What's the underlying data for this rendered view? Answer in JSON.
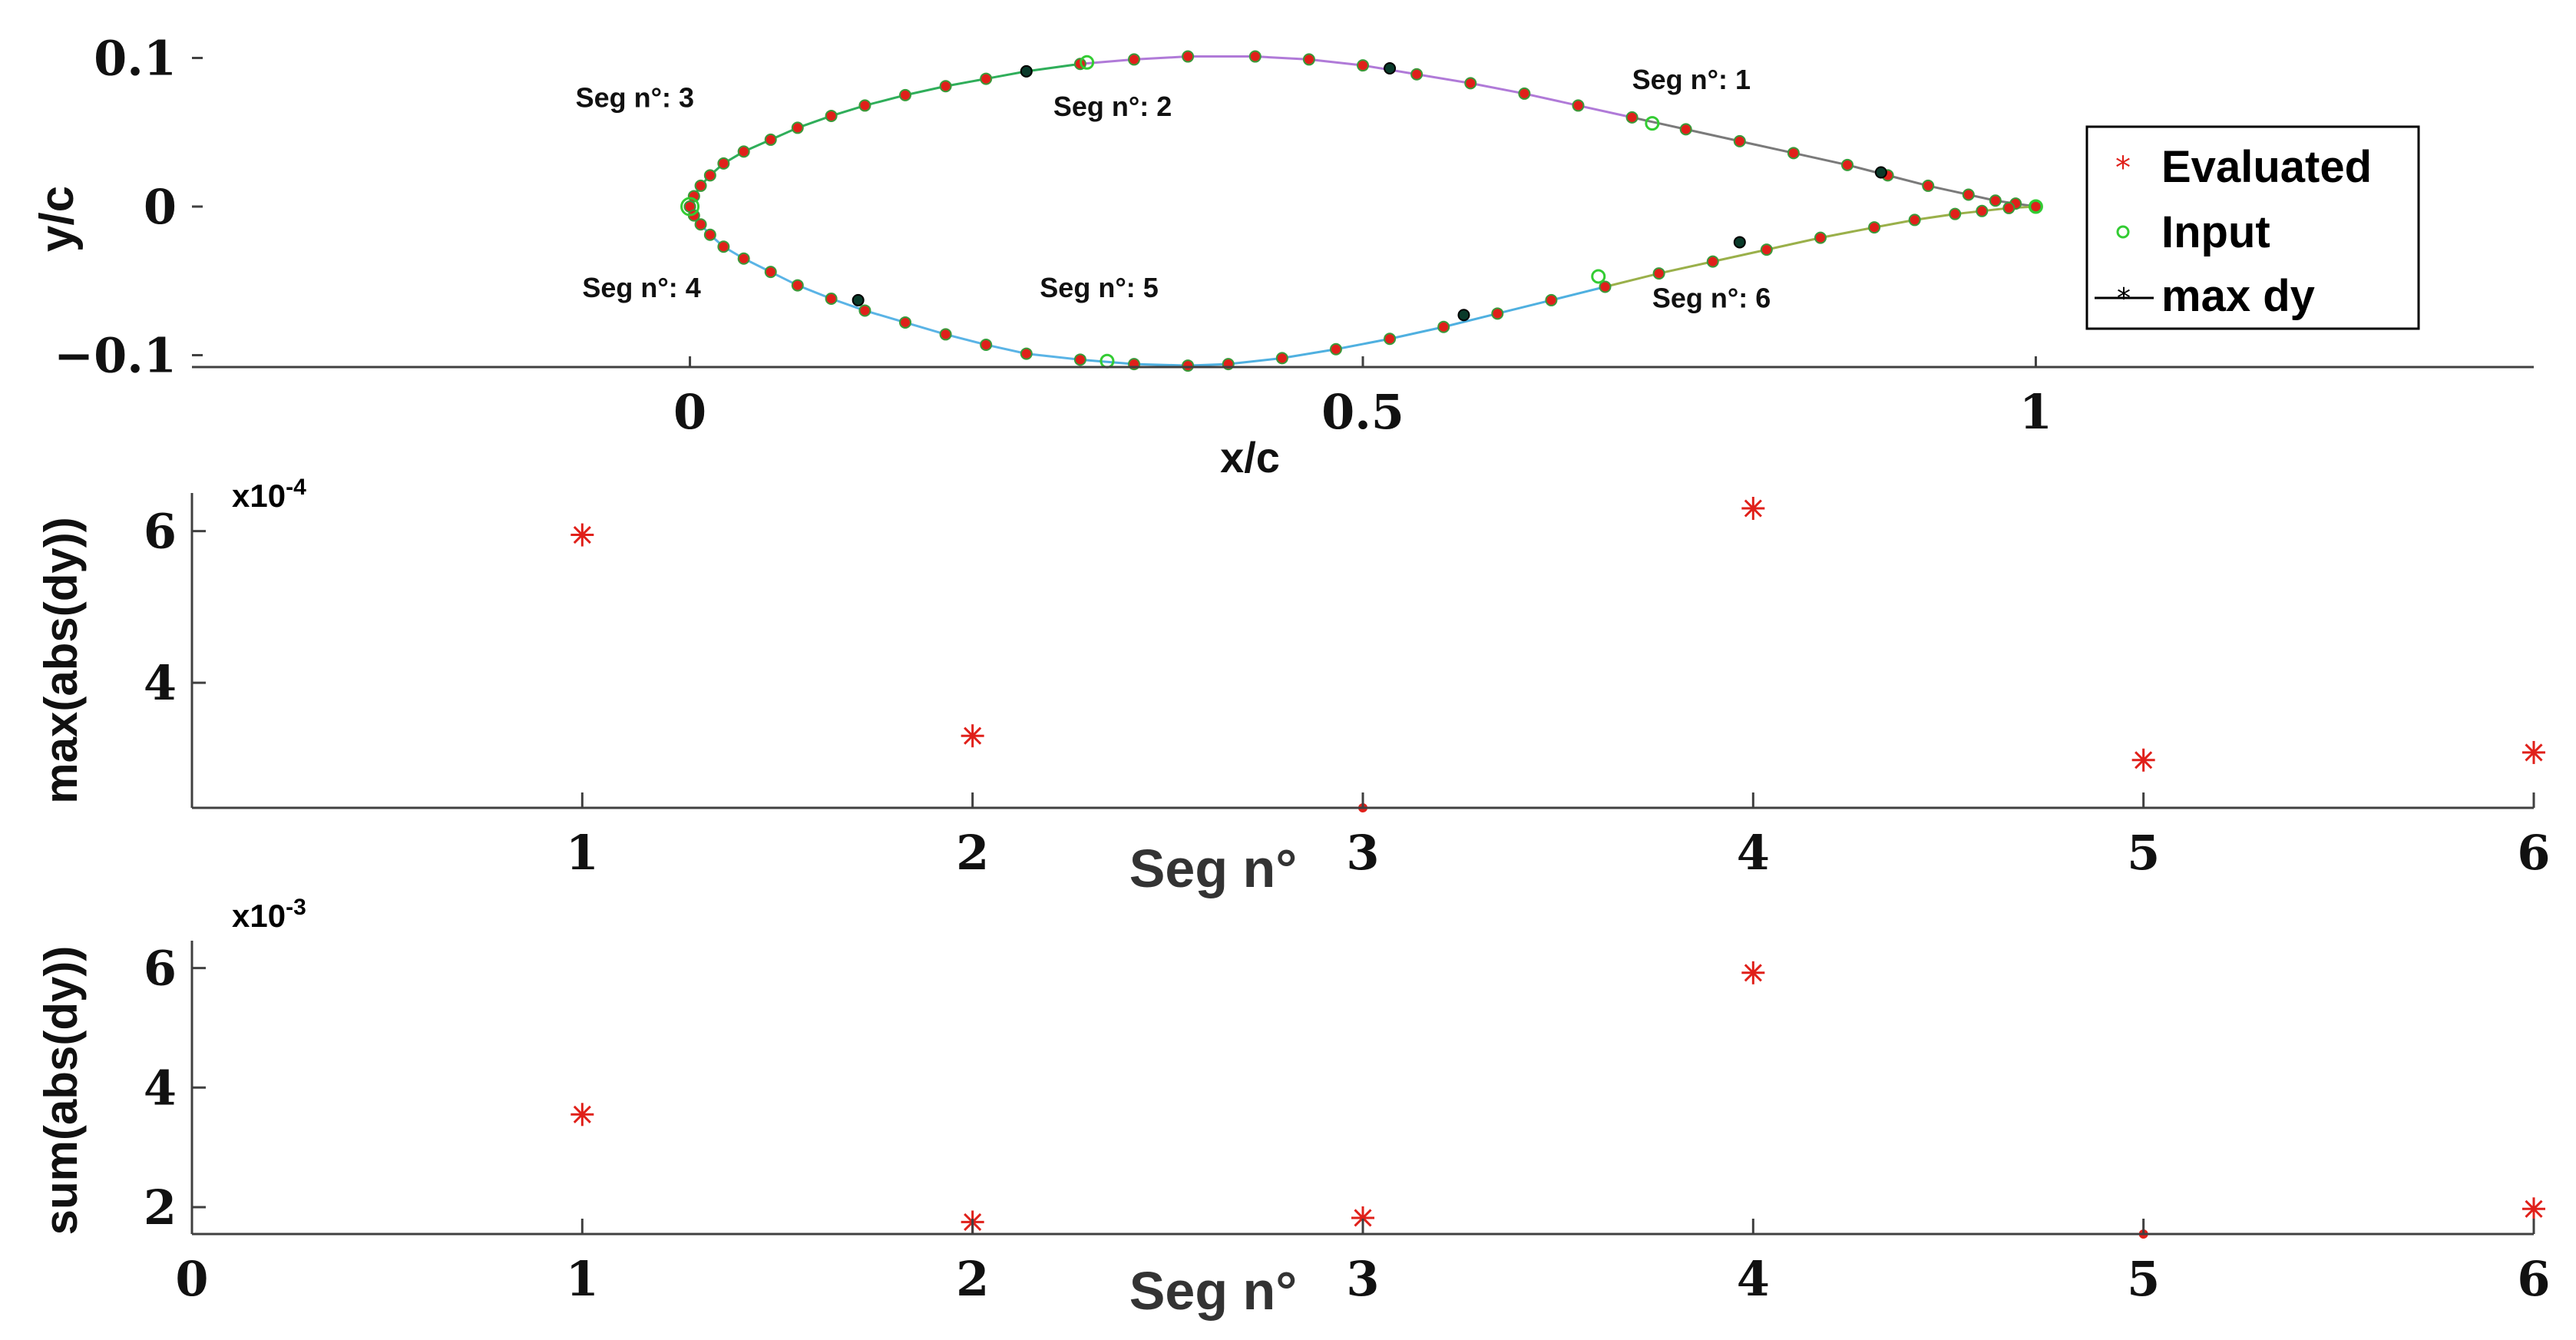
{
  "colors": {
    "evaluated": "#e0201a",
    "input": "#33cc33",
    "maxdy": "#000000",
    "axis": "#404040",
    "seg1": "#7a7a7a",
    "seg2": "#b07ad8",
    "seg3": "#2fae5a",
    "seg4": "#5ab4e6",
    "seg5": "#4fb0e0",
    "seg6": "#9ab04a"
  },
  "chart_data": [
    {
      "type": "line",
      "xlabel": "x/c",
      "ylabel": "y/c",
      "xlim": [
        -0.37,
        1.37
      ],
      "ylim": [
        -0.108,
        0.108
      ],
      "xticks": [
        "0",
        "0.5",
        "1"
      ],
      "xtick_values": [
        0,
        0.5,
        1
      ],
      "yticks": [
        "0.1",
        "0",
        "−0.1"
      ],
      "ytick_values": [
        0.1,
        0,
        -0.1
      ],
      "grid": false,
      "legend_position": "top-right",
      "legend": {
        "evaluated": "Evaluated",
        "input": "Input",
        "maxdy": "max dy"
      },
      "segment_labels": [
        {
          "text": "Seg n°: 1",
          "x": 0.7,
          "y": 0.079
        },
        {
          "text": "Seg n°: 2",
          "x": 0.27,
          "y": 0.061
        },
        {
          "text": "Seg n°: 3",
          "x": -0.085,
          "y": 0.067
        },
        {
          "text": "Seg n°: 4",
          "x": -0.08,
          "y": -0.061
        },
        {
          "text": "Seg n°: 5",
          "x": 0.26,
          "y": -0.061
        },
        {
          "text": "Seg n°: 6",
          "x": 0.715,
          "y": -0.068
        }
      ],
      "upper_surface": {
        "x": [
          0,
          0.003,
          0.008,
          0.015,
          0.025,
          0.04,
          0.06,
          0.08,
          0.105,
          0.13,
          0.16,
          0.19,
          0.22,
          0.25,
          0.29,
          0.33,
          0.37,
          0.42,
          0.46,
          0.5,
          0.54,
          0.58,
          0.62,
          0.66,
          0.7,
          0.74,
          0.78,
          0.82,
          0.86,
          0.89,
          0.92,
          0.95,
          0.97,
          0.985,
          1.0
        ],
        "y": [
          0,
          0.007,
          0.014,
          0.021,
          0.029,
          0.037,
          0.045,
          0.053,
          0.061,
          0.068,
          0.075,
          0.081,
          0.086,
          0.091,
          0.096,
          0.099,
          0.101,
          0.101,
          0.099,
          0.095,
          0.089,
          0.083,
          0.076,
          0.068,
          0.06,
          0.052,
          0.044,
          0.036,
          0.028,
          0.021,
          0.014,
          0.008,
          0.004,
          0.002,
          0.0
        ]
      },
      "lower_surface": {
        "x": [
          0,
          0.003,
          0.008,
          0.015,
          0.025,
          0.04,
          0.06,
          0.08,
          0.105,
          0.13,
          0.16,
          0.19,
          0.22,
          0.25,
          0.29,
          0.33,
          0.37,
          0.4,
          0.44,
          0.48,
          0.52,
          0.56,
          0.6,
          0.64,
          0.68,
          0.72,
          0.76,
          0.8,
          0.84,
          0.88,
          0.91,
          0.94,
          0.96,
          0.98,
          1.0
        ],
        "y": [
          0,
          -0.006,
          -0.012,
          -0.019,
          -0.027,
          -0.035,
          -0.044,
          -0.053,
          -0.062,
          -0.07,
          -0.078,
          -0.086,
          -0.093,
          -0.099,
          -0.103,
          -0.106,
          -0.107,
          -0.106,
          -0.102,
          -0.096,
          -0.089,
          -0.081,
          -0.072,
          -0.063,
          -0.054,
          -0.045,
          -0.037,
          -0.029,
          -0.021,
          -0.014,
          -0.009,
          -0.005,
          -0.003,
          -0.001,
          0.0
        ]
      },
      "input_points": [
        {
          "x": 0.0,
          "y": 0.0
        },
        {
          "x": 0.295,
          "y": 0.097
        },
        {
          "x": 0.715,
          "y": 0.056
        },
        {
          "x": 1.0,
          "y": 0.0
        },
        {
          "x": 0.31,
          "y": -0.104
        },
        {
          "x": 0.675,
          "y": -0.047
        }
      ],
      "maxdy_points": [
        {
          "x": 0.885,
          "y": 0.023
        },
        {
          "x": 0.25,
          "y": 0.091
        },
        {
          "x": 0.52,
          "y": 0.093
        },
        {
          "x": 0.125,
          "y": -0.063
        },
        {
          "x": 0.575,
          "y": -0.073
        },
        {
          "x": 0.78,
          "y": -0.024
        }
      ]
    },
    {
      "type": "scatter",
      "xlabel": "Seg n°",
      "ylabel": "max(abs(dy))",
      "exponent_label": "x10",
      "exponent_power": "-4",
      "xlim": [
        0,
        6
      ],
      "ylim": [
        2.35,
        6.3
      ],
      "xticks": [
        "1",
        "2",
        "3",
        "4",
        "5",
        "6"
      ],
      "xtick_values": [
        1,
        2,
        3,
        4,
        5,
        6
      ],
      "yticks": [
        "6",
        "4"
      ],
      "ytick_values": [
        6,
        4
      ],
      "grid": false,
      "series": [
        {
          "x": [
            1,
            2,
            3,
            4,
            5,
            6
          ],
          "values": [
            5.95,
            3.3,
            2.35,
            6.3,
            2.98,
            3.08
          ]
        }
      ]
    },
    {
      "type": "scatter",
      "xlabel": "Seg n°",
      "ylabel": "sum(abs(dy))",
      "exponent_label": "x10",
      "exponent_power": "-3",
      "xlim": [
        0,
        6
      ],
      "ylim": [
        1.55,
        6.2
      ],
      "xticks": [
        "0",
        "1",
        "2",
        "3",
        "4",
        "5",
        "6"
      ],
      "xtick_values": [
        0,
        1,
        2,
        3,
        4,
        5,
        6
      ],
      "yticks": [
        "6",
        "4",
        "2"
      ],
      "ytick_values": [
        6,
        4,
        2
      ],
      "grid": false,
      "series": [
        {
          "x": [
            1,
            2,
            3,
            4,
            5,
            6
          ],
          "values": [
            3.55,
            1.75,
            1.82,
            5.92,
            1.55,
            1.97
          ]
        }
      ]
    }
  ]
}
